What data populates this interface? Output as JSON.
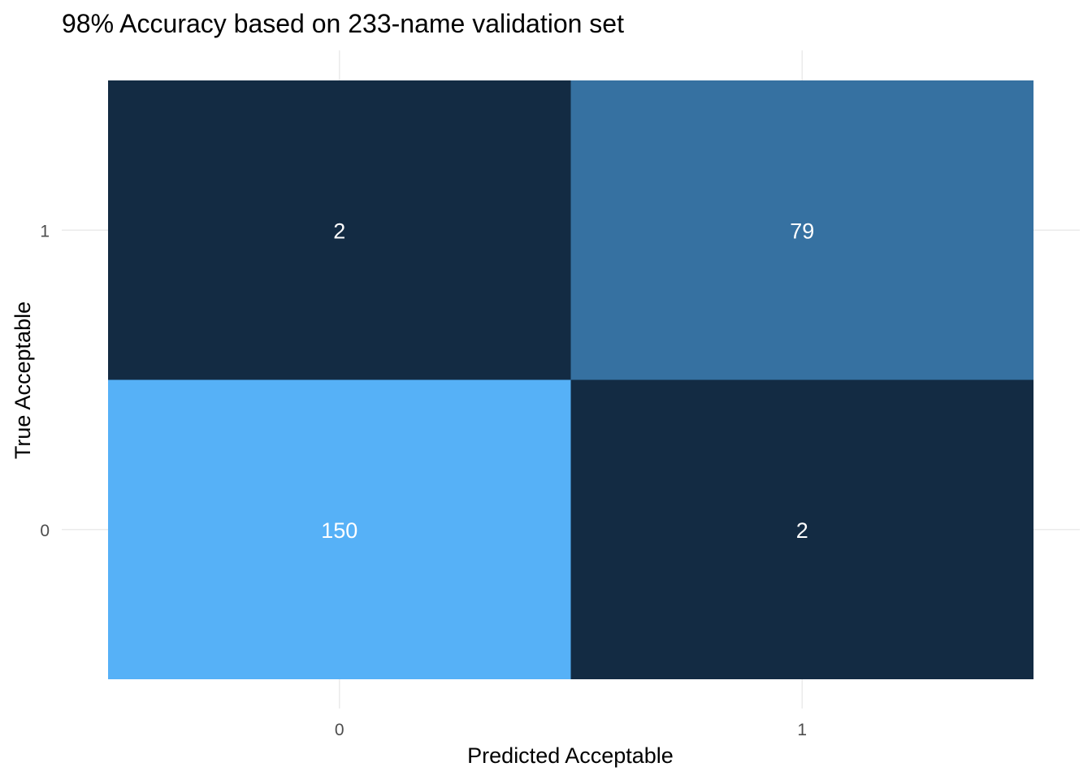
{
  "chart_data": {
    "type": "heatmap",
    "title": "98% Accuracy based on 233-name validation set",
    "xlabel": "Predicted Acceptable",
    "ylabel": "True Acceptable",
    "x_categories": [
      "0",
      "1"
    ],
    "y_categories": [
      "0",
      "1"
    ],
    "cells": [
      {
        "x": "0",
        "y": "1",
        "value": 2,
        "label": "2"
      },
      {
        "x": "1",
        "y": "1",
        "value": 79,
        "label": "79"
      },
      {
        "x": "0",
        "y": "0",
        "value": 150,
        "label": "150"
      },
      {
        "x": "1",
        "y": "0",
        "value": 2,
        "label": "2"
      }
    ],
    "color_scale": {
      "low": "#132B43",
      "high": "#56B1F7"
    },
    "value_range": [
      2,
      150
    ],
    "legend": "none",
    "grid": true
  }
}
